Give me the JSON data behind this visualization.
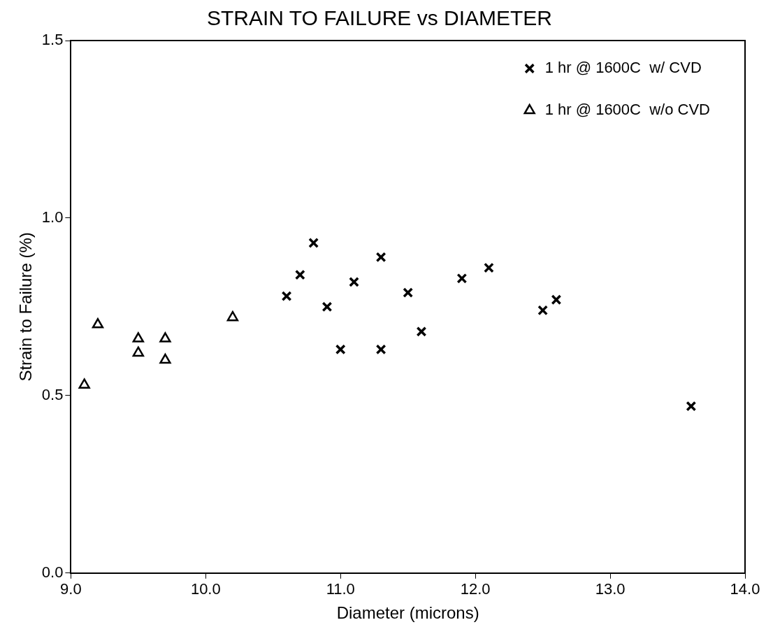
{
  "chart_data": {
    "type": "scatter",
    "title": "STRAIN TO FAILURE vs DIAMETER",
    "xlabel": "Diameter (microns)",
    "ylabel": "Strain to Failure (%)",
    "xlim": [
      9.0,
      14.0
    ],
    "xticks": [
      {
        "value": 9,
        "label": "9.0"
      },
      {
        "value": 10,
        "label": "10.0"
      },
      {
        "value": 11,
        "label": "11.0"
      },
      {
        "value": 12,
        "label": "12.0"
      },
      {
        "value": 13,
        "label": "13.0"
      },
      {
        "value": 14,
        "label": "14.0"
      }
    ],
    "ylim": [
      0,
      1.5
    ],
    "yticks": [
      {
        "value": 0,
        "label": "0.0"
      },
      {
        "value": 0.5,
        "label": "0.5"
      },
      {
        "value": 1,
        "label": "1.0"
      },
      {
        "value": 1.5,
        "label": "1.5"
      }
    ],
    "grid": false,
    "legend": "top right",
    "series": [
      {
        "name": "1 hr @ 1600C  w/ CVD",
        "color": "#000000",
        "marker": "cross",
        "x": [
          10.6,
          10.7,
          10.8,
          10.9,
          11.0,
          11.1,
          11.3,
          11.3,
          11.5,
          11.6,
          11.9,
          12.1,
          12.5,
          12.6,
          13.6
        ],
        "values": [
          0.78,
          0.84,
          0.93,
          0.75,
          0.63,
          0.82,
          0.89,
          0.63,
          0.79,
          0.68,
          0.83,
          0.86,
          0.74,
          0.77,
          0.47
        ]
      },
      {
        "name": "1 hr @ 1600C  w/o CVD",
        "color": "#000000",
        "marker": "triangle",
        "x": [
          9.1,
          9.2,
          9.5,
          9.5,
          9.7,
          9.7,
          10.2
        ],
        "values": [
          0.53,
          0.7,
          0.66,
          0.62,
          0.66,
          0.6,
          0.72
        ]
      }
    ]
  }
}
